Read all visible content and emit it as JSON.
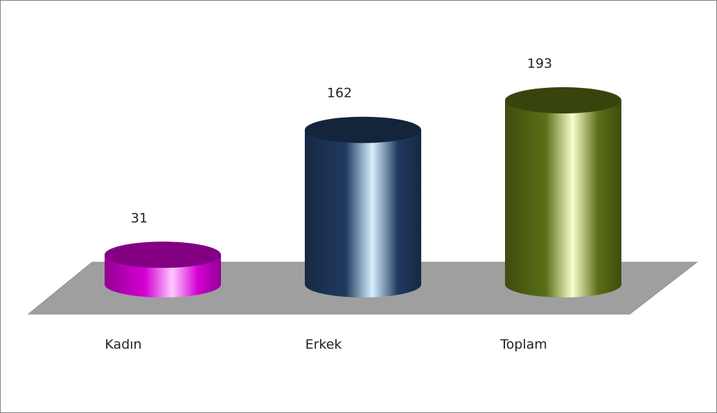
{
  "chart_data": {
    "type": "bar",
    "style": "3d-cylinder",
    "categories": [
      "Kadın",
      "Erkek",
      "Toplam"
    ],
    "values": [
      31,
      162,
      193
    ],
    "title": "",
    "xlabel": "",
    "ylabel": "",
    "legend": "none",
    "grid": false,
    "colors": [
      "#d400d4",
      "#1f3a5f",
      "#5a6e16"
    ],
    "highlight_colors": [
      "#ffc8ff",
      "#d6f0ff",
      "#f8ffcc"
    ]
  }
}
